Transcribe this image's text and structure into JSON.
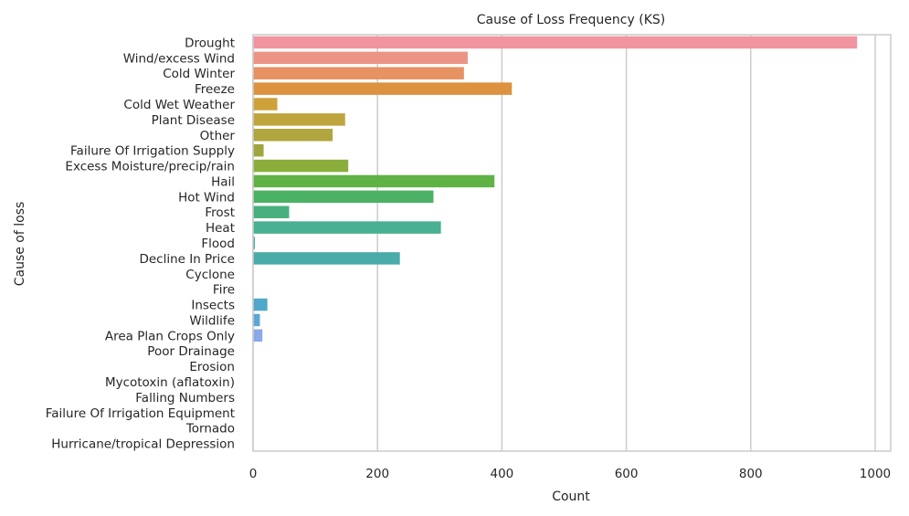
{
  "chart_data": {
    "type": "bar",
    "orientation": "horizontal",
    "title": "Cause of Loss Frequency (KS)",
    "xlabel": "Count",
    "ylabel": "Cause of loss",
    "xlim": [
      0,
      1025
    ],
    "xticks": [
      0,
      200,
      400,
      600,
      800,
      1000
    ],
    "grid": "x",
    "categories": [
      "Drought",
      "Wind/excess Wind",
      "Cold Winter",
      "Freeze",
      "Cold Wet Weather",
      "Plant Disease",
      "Other",
      "Failure Of Irrigation Supply",
      "Excess Moisture/precip/rain",
      "Hail",
      "Hot Wind",
      "Frost",
      "Heat",
      "Flood",
      "Decline In Price",
      "Cyclone",
      "Fire",
      "Insects",
      "Wildlife",
      "Area Plan Crops Only",
      "Poor Drainage",
      "Erosion",
      "Mycotoxin (aflatoxin)",
      "Falling Numbers",
      "Failure Of Irrigation Equipment",
      "Tornado",
      "Hurricane/tropical Depression"
    ],
    "values": [
      971,
      345,
      339,
      416,
      39,
      148,
      128,
      17,
      153,
      388,
      290,
      58,
      302,
      3,
      236,
      0,
      0,
      23,
      11,
      15,
      0,
      0,
      0,
      0,
      0,
      0,
      0
    ],
    "colors": [
      "#f0959f",
      "#eb9485",
      "#e79262",
      "#dc923e",
      "#cfa13b",
      "#bfa53d",
      "#b0a53e",
      "#a0a63e",
      "#8aad3c",
      "#5fb344",
      "#4bb265",
      "#48b07d",
      "#49b092",
      "#4bad9f",
      "#4aaca9",
      "#4baab3",
      "#4ca9bd",
      "#4fa8c9",
      "#5aa7d8",
      "#8aa9e8",
      "#aba4ec",
      "#c29bec",
      "#d690eb",
      "#e789e5",
      "#ee8fd6",
      "#f092c4",
      "#f196b5"
    ]
  }
}
